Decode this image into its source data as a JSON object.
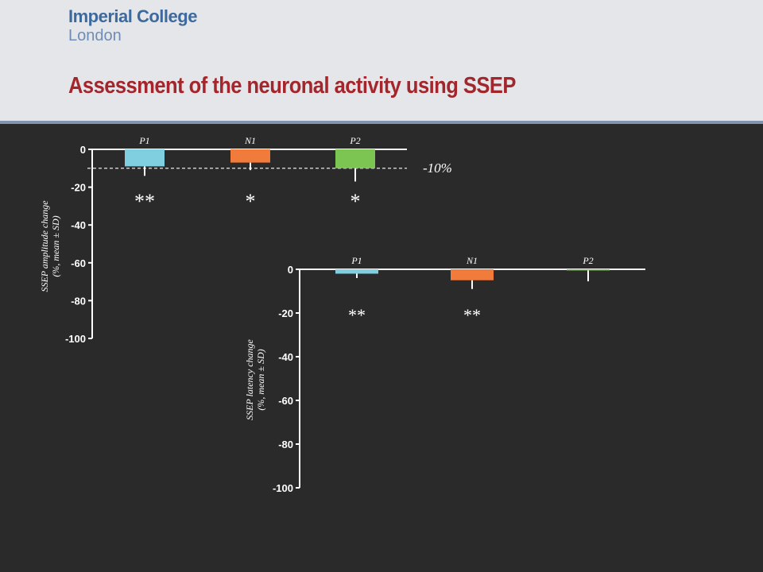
{
  "header": {
    "logo_line1": "Imperial College",
    "logo_line2": "London",
    "title": "Assessment of the neuronal activity using SSEP"
  },
  "colors": {
    "P1": "#7fcfe0",
    "N1": "#f07b3b",
    "P2": "#7cc552",
    "axis": "#ffffff",
    "title": "#a3262c"
  },
  "chart_data": [
    {
      "type": "bar",
      "categories": [
        "P1",
        "N1",
        "P2"
      ],
      "values": [
        -9,
        -7,
        -10
      ],
      "error_sd": [
        5,
        4,
        7
      ],
      "significance": [
        "**",
        "*",
        "*"
      ],
      "ylabel_line1": "SSEP amplitude change",
      "ylabel_line2": "(%, mean ± SD)",
      "ylim": [
        -100,
        0
      ],
      "yticks": [
        0,
        -20,
        -40,
        -60,
        -80,
        -100
      ],
      "reference_line": {
        "value": -10,
        "label": "-10%"
      }
    },
    {
      "type": "bar",
      "categories": [
        "P1",
        "N1",
        "P2"
      ],
      "values": [
        -2,
        -5,
        -0.5
      ],
      "error_sd": [
        2,
        4,
        5
      ],
      "significance": [
        "**",
        "**",
        ""
      ],
      "ylabel_line1": "SSEP latency change",
      "ylabel_line2": "(%, mean ± SD)",
      "ylim": [
        -100,
        0
      ],
      "yticks": [
        0,
        -20,
        -40,
        -60,
        -80,
        -100
      ]
    }
  ]
}
